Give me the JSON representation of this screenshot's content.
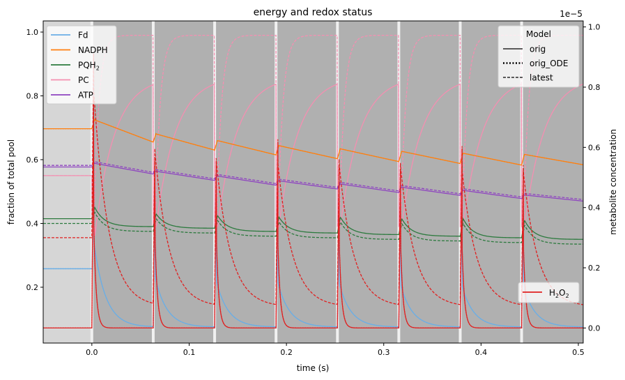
{
  "chart_data": {
    "type": "line",
    "title": "energy and redox status",
    "xlabel": "time (s)",
    "ylabel_left": "fraction of total pool",
    "ylabel_right": "metabolite concentration",
    "right_axis_multiplier": "1e−5",
    "xlim": [
      -0.05,
      0.505
    ],
    "ylim_left": [
      0.025,
      1.035
    ],
    "ylim_right": [
      -0.05,
      1.02
    ],
    "xticks": [
      0.0,
      0.1,
      0.2,
      0.3,
      0.4,
      0.5
    ],
    "xtick_labels": [
      "0.0",
      "0.1",
      "0.2",
      "0.3",
      "0.4",
      "0.5"
    ],
    "yticks_left": [
      0.2,
      0.4,
      0.6,
      0.8,
      1.0
    ],
    "ytick_labels_left": [
      "0.2",
      "0.4",
      "0.6",
      "0.8",
      "1.0"
    ],
    "yticks_right": [
      0.0,
      0.2,
      0.4,
      0.6,
      0.8,
      1.0
    ],
    "ytick_labels_right": [
      "0.0",
      "0.2",
      "0.4",
      "0.6",
      "0.8",
      "1.0"
    ],
    "pulse_times": [
      0.0,
      0.0631,
      0.1262,
      0.1893,
      0.2524,
      0.3155,
      0.3786,
      0.4417
    ],
    "pulse_width": 0.004,
    "dark_period_shade": "#d6d6d6",
    "light_period_shade": "#b0b0b0",
    "flash_color": "#f0f0f0",
    "series": [
      {
        "name": "Fd",
        "legend_label": "Fd",
        "color": "#6aaee6",
        "axis": "left",
        "pre": 0.258,
        "peak": [
          0.98,
          0.66,
          0.62,
          0.61,
          0.6,
          0.59,
          0.58,
          0.58
        ],
        "trough": 0.075,
        "tau": 0.012
      },
      {
        "name": "NADPH",
        "legend_label": "NADPH",
        "color": "#ff7f0e",
        "axis": "left",
        "pre": 0.697,
        "peak": [
          0.728,
          0.683,
          0.662,
          0.646,
          0.636,
          0.628,
          0.622,
          0.618
        ],
        "end": [
          0.655,
          0.63,
          0.615,
          0.603,
          0.594,
          0.588,
          0.583,
          0.584
        ]
      },
      {
        "name": "PQH2",
        "legend_label": "PQH",
        "legend_sub": "2",
        "color": "#2c7a3e",
        "axis": "left",
        "pre": 0.415,
        "peak": [
          0.45,
          0.43,
          0.425,
          0.42,
          0.42,
          0.415,
          0.415,
          0.41
        ],
        "end": [
          0.39,
          0.385,
          0.375,
          0.37,
          0.365,
          0.36,
          0.355,
          0.35
        ],
        "latest_offset": -0.015
      },
      {
        "name": "PC",
        "legend_label": "PC",
        "color": "#f48fb1",
        "axis": "left",
        "pre": 0.55,
        "top": 0.99,
        "curve_top": 0.86,
        "curve_start": 0.39
      },
      {
        "name": "ATP",
        "legend_label": "ATP",
        "color": "#8e44c0",
        "axis": "left",
        "pre": 0.577,
        "peak": [
          0.59,
          0.565,
          0.55,
          0.535,
          0.525,
          0.515,
          0.505,
          0.49
        ],
        "end": [
          0.555,
          0.535,
          0.52,
          0.508,
          0.497,
          0.488,
          0.478,
          0.47
        ]
      },
      {
        "name": "H2O2",
        "legend_label": "H",
        "legend_mid": "O",
        "color": "#e02020",
        "axis": "right",
        "pre": 0.0,
        "peak_orig": [
          0.85,
          0.71,
          0.69,
          0.68,
          0.67,
          0.66,
          0.65,
          0.64
        ],
        "latest_pre": 0.3,
        "latest_peak": [
          0.98,
          0.72,
          0.68,
          0.68,
          0.67,
          0.66,
          0.65,
          0.64
        ],
        "latest_trough": 0.07
      }
    ],
    "model_legend": {
      "title": "Model",
      "entries": [
        {
          "label": "orig",
          "style": "solid"
        },
        {
          "label": "orig_ODE",
          "style": "dotted"
        },
        {
          "label": "latest",
          "style": "dashed"
        }
      ]
    },
    "legend_placement": {
      "species": "upper left",
      "model": "upper right",
      "h2o2": "lower right"
    }
  }
}
